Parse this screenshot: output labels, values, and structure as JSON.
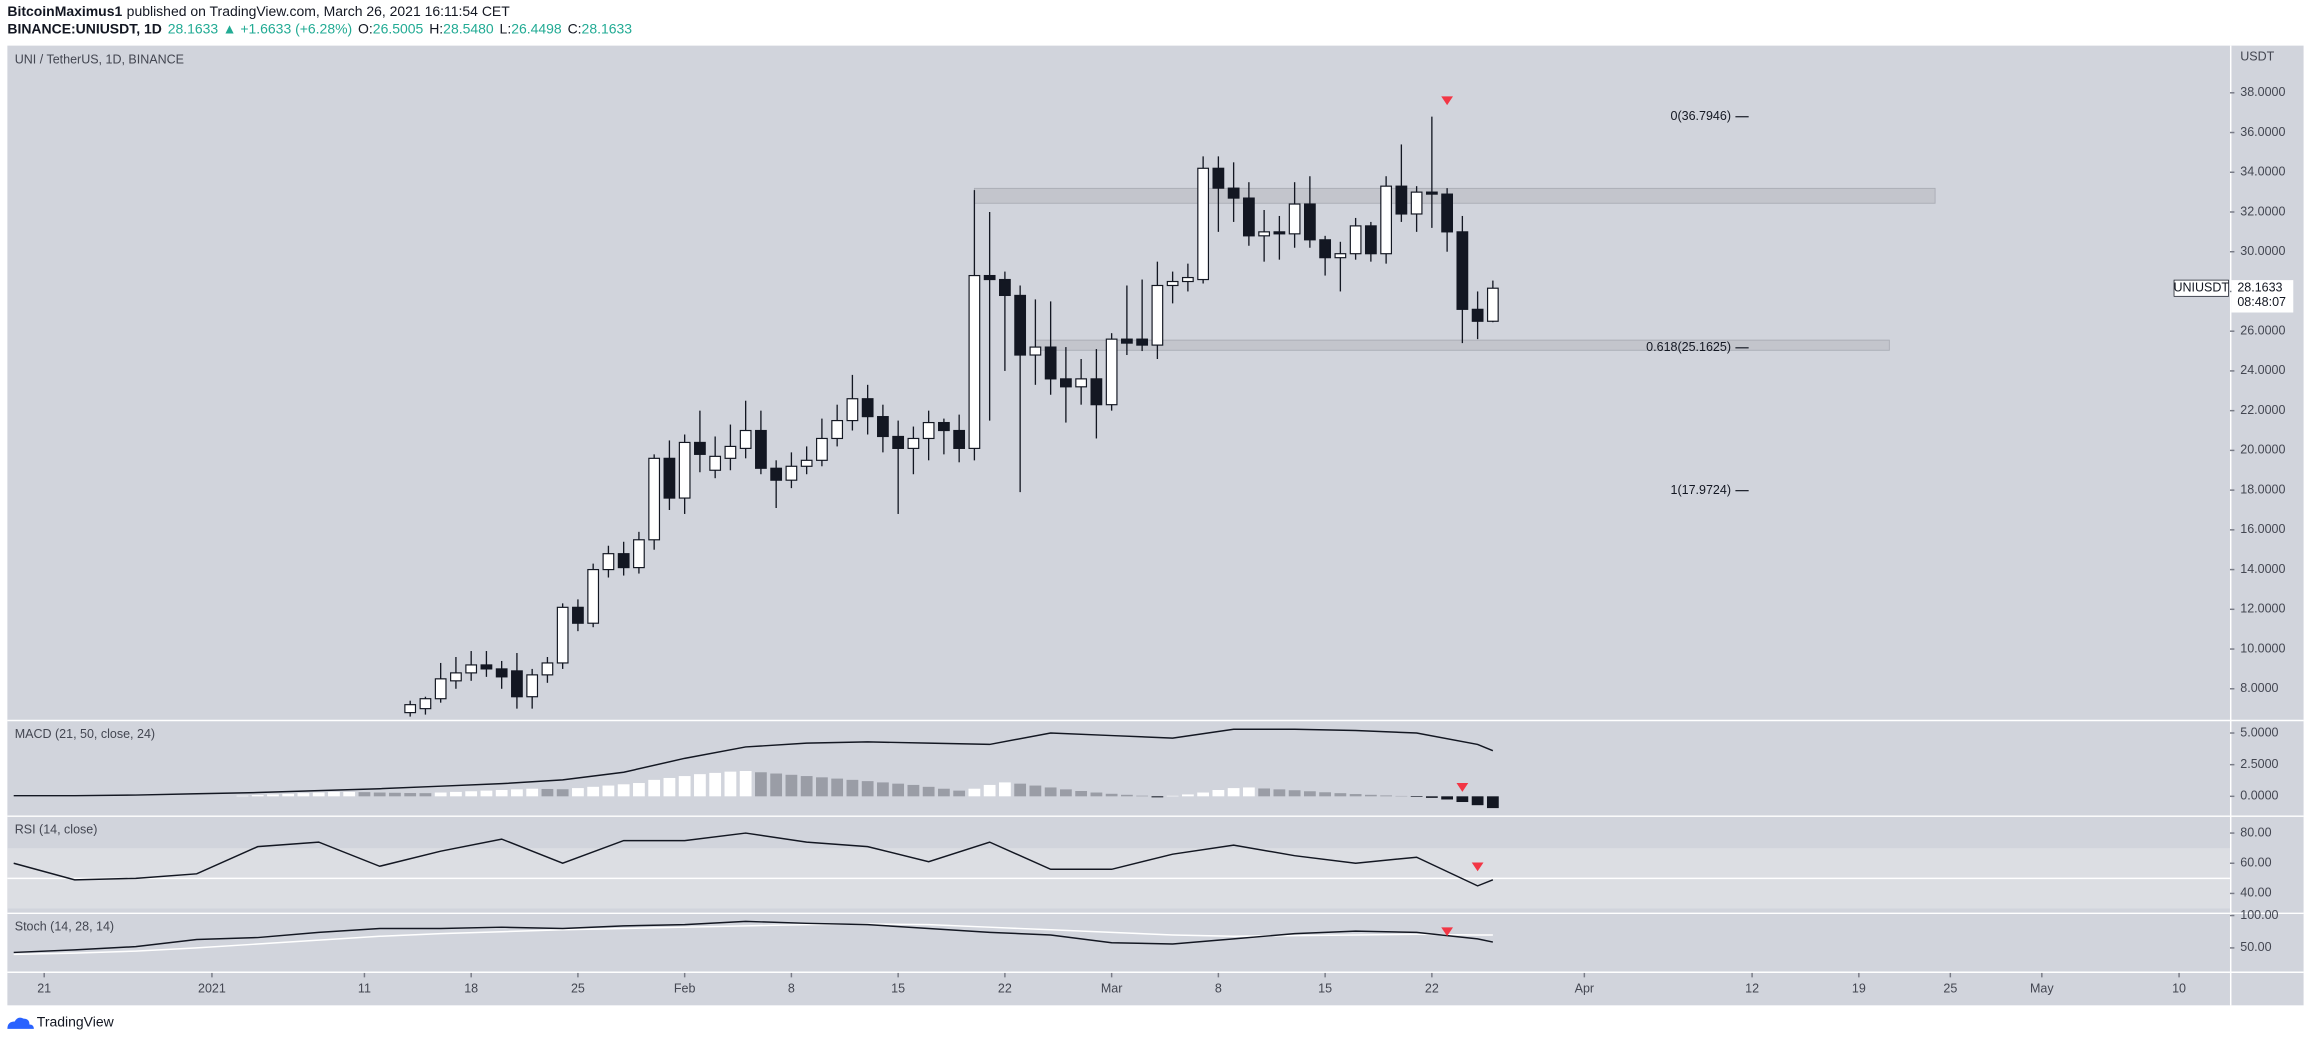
{
  "header": {
    "author": "BitcoinMaximus1",
    "published": "published on TradingView.com, March 26, 2021 16:11:54 CET",
    "symbol": "BINANCE:UNIUSDT, 1D",
    "last": "28.1633",
    "change": "▲ +1.6633 (+6.28%)",
    "ohlc": [
      {
        "label": "O:",
        "value": "26.5005"
      },
      {
        "label": "H:",
        "value": "28.5480"
      },
      {
        "label": "L:",
        "value": "26.4498"
      },
      {
        "label": "C:",
        "value": "28.1633"
      }
    ]
  },
  "chart_data": [
    {
      "type": "candlestick",
      "title": "UNI / TetherUS, 1D, BINANCE",
      "currency": "USDT",
      "up_color": "#ffffff",
      "down_color": "#131722",
      "x": [
        "2021-01-14",
        "2021-01-15",
        "2021-01-16",
        "2021-01-17",
        "2021-01-18",
        "2021-01-19",
        "2021-01-20",
        "2021-01-21",
        "2021-01-22",
        "2021-01-23",
        "2021-01-24",
        "2021-01-25",
        "2021-01-26",
        "2021-01-27",
        "2021-01-28",
        "2021-01-29",
        "2021-01-30",
        "2021-01-31",
        "2021-02-01",
        "2021-02-02",
        "2021-02-03",
        "2021-02-04",
        "2021-02-05",
        "2021-02-06",
        "2021-02-07",
        "2021-02-08",
        "2021-02-09",
        "2021-02-10",
        "2021-02-11",
        "2021-02-12",
        "2021-02-13",
        "2021-02-14",
        "2021-02-15",
        "2021-02-16",
        "2021-02-17",
        "2021-02-18",
        "2021-02-19",
        "2021-02-20",
        "2021-02-21",
        "2021-02-22",
        "2021-02-23",
        "2021-02-24",
        "2021-02-25",
        "2021-02-26",
        "2021-02-27",
        "2021-02-28",
        "2021-03-01",
        "2021-03-02",
        "2021-03-03",
        "2021-03-04",
        "2021-03-05",
        "2021-03-06",
        "2021-03-07",
        "2021-03-08",
        "2021-03-09",
        "2021-03-10",
        "2021-03-11",
        "2021-03-12",
        "2021-03-13",
        "2021-03-14",
        "2021-03-15",
        "2021-03-16",
        "2021-03-17",
        "2021-03-18",
        "2021-03-19",
        "2021-03-20",
        "2021-03-21",
        "2021-03-22",
        "2021-03-23",
        "2021-03-24",
        "2021-03-25",
        "2021-03-26"
      ],
      "open": [
        6.8,
        7.0,
        7.5,
        8.4,
        8.8,
        9.2,
        9.0,
        8.9,
        7.6,
        8.7,
        9.3,
        12.1,
        11.3,
        14.0,
        14.8,
        14.1,
        15.5,
        19.6,
        17.6,
        20.4,
        19.0,
        19.6,
        20.1,
        21.0,
        19.1,
        18.5,
        19.2,
        19.5,
        20.6,
        21.5,
        22.6,
        21.7,
        20.7,
        20.1,
        20.6,
        21.4,
        21.0,
        20.1,
        28.8,
        28.6,
        27.8,
        24.8,
        25.2,
        23.6,
        23.2,
        23.6,
        22.3,
        25.6,
        25.6,
        25.3,
        28.3,
        28.5,
        28.6,
        34.2,
        33.2,
        32.7,
        30.8,
        31.0,
        30.9,
        32.4,
        30.6,
        29.7,
        29.9,
        31.3,
        29.9,
        33.3,
        31.9,
        33.0,
        32.9,
        31.0,
        27.1,
        26.5005
      ],
      "high": [
        7.4,
        7.6,
        9.3,
        9.6,
        9.9,
        9.9,
        9.4,
        9.8,
        9.0,
        9.6,
        12.3,
        12.5,
        14.3,
        15.2,
        15.4,
        15.9,
        19.8,
        20.5,
        20.8,
        22.0,
        20.7,
        21.3,
        22.5,
        22.0,
        19.5,
        19.9,
        20.2,
        21.6,
        22.3,
        23.8,
        23.3,
        22.3,
        21.5,
        21.2,
        22.0,
        21.6,
        21.8,
        33.1,
        32.0,
        29.0,
        28.3,
        27.6,
        27.5,
        25.2,
        24.6,
        25.1,
        25.9,
        28.3,
        28.6,
        29.5,
        29.0,
        29.4,
        34.8,
        34.8,
        34.5,
        33.5,
        32.1,
        31.8,
        33.5,
        33.8,
        30.8,
        30.5,
        31.7,
        31.5,
        33.8,
        35.4,
        33.3,
        36.8,
        33.2,
        31.8,
        28.0,
        28.548
      ],
      "low": [
        6.6,
        6.7,
        7.3,
        8.0,
        8.4,
        8.6,
        8.0,
        7.0,
        7.0,
        8.3,
        9.0,
        10.9,
        11.1,
        13.6,
        13.7,
        13.8,
        15.0,
        17.0,
        16.8,
        18.9,
        18.6,
        19.0,
        19.6,
        18.8,
        17.1,
        18.1,
        18.8,
        19.2,
        20.2,
        21.0,
        20.8,
        19.9,
        16.8,
        18.8,
        19.5,
        19.8,
        19.4,
        19.5,
        21.5,
        24.0,
        17.9,
        23.3,
        22.8,
        21.4,
        22.3,
        20.6,
        22.0,
        24.8,
        25.0,
        24.6,
        27.4,
        28.0,
        28.4,
        31.0,
        31.5,
        30.3,
        29.5,
        29.6,
        30.2,
        30.2,
        28.8,
        28.0,
        29.6,
        29.5,
        29.4,
        31.5,
        31.0,
        31.2,
        30.0,
        25.4,
        25.6,
        26.4498
      ],
      "close": [
        7.2,
        7.5,
        8.5,
        8.8,
        9.2,
        9.0,
        8.6,
        7.6,
        8.7,
        9.3,
        12.1,
        11.3,
        14.0,
        14.8,
        14.1,
        15.5,
        19.6,
        17.6,
        20.4,
        19.8,
        19.7,
        20.2,
        21.0,
        19.1,
        18.5,
        19.2,
        19.5,
        20.6,
        21.5,
        22.6,
        21.7,
        20.7,
        20.1,
        20.6,
        21.4,
        21.0,
        20.1,
        28.8,
        28.6,
        27.8,
        24.8,
        25.2,
        23.6,
        23.2,
        23.6,
        22.3,
        25.6,
        25.4,
        25.3,
        28.3,
        28.5,
        28.7,
        34.2,
        33.2,
        32.7,
        30.8,
        31.0,
        30.9,
        32.4,
        30.6,
        29.7,
        29.9,
        31.3,
        29.9,
        33.3,
        31.9,
        33.0,
        32.9,
        31.0,
        27.1,
        26.5,
        28.1633
      ],
      "xlim": [
        "2020-12-19",
        "2021-05-13"
      ],
      "ylim": [
        6.44,
        40.3
      ],
      "yticks": [
        {
          "value": 8,
          "label": "8.0000"
        },
        {
          "value": 10,
          "label": "10.0000"
        },
        {
          "value": 12,
          "label": "12.0000"
        },
        {
          "value": 14,
          "label": "14.0000"
        },
        {
          "value": 16,
          "label": "16.0000"
        },
        {
          "value": 18,
          "label": "18.0000"
        },
        {
          "value": 20,
          "label": "20.0000"
        },
        {
          "value": 22,
          "label": "22.0000"
        },
        {
          "value": 24,
          "label": "24.0000"
        },
        {
          "value": 26,
          "label": "26.0000"
        },
        {
          "value": 28,
          "label": "28.0000"
        },
        {
          "value": 30,
          "label": "30.0000"
        },
        {
          "value": 32,
          "label": "32.0000"
        },
        {
          "value": 34,
          "label": "34.0000"
        },
        {
          "value": 36,
          "label": "36.0000"
        },
        {
          "value": 38,
          "label": "38.0000"
        }
      ],
      "zones": [
        {
          "x": [
            "2021-02-20",
            "2021-04-24"
          ],
          "y": [
            32.44,
            33.19
          ],
          "color": "#bfc1c8"
        },
        {
          "x": [
            "2021-02-24",
            "2021-04-21"
          ],
          "y": [
            25.04,
            25.55
          ],
          "color": "#bfc1c8"
        }
      ],
      "levels": [
        {
          "value": 36.7946,
          "label": "0(36.7946)"
        },
        {
          "value": 25.1625,
          "label": "0.618(25.1625)"
        },
        {
          "value": 17.9724,
          "label": "1(17.9724)"
        }
      ],
      "markers": [
        {
          "x": "2021-03-23",
          "y": 37.6,
          "color": "#f23645"
        }
      ],
      "last_price": {
        "symbol": "UNIUSDT",
        "value": 28.1633,
        "countdown": "08:48:07"
      }
    },
    {
      "type": "combo",
      "title": "MACD (21, 50, close, 24)",
      "x": [
        "2020-12-19",
        "2020-12-23",
        "2020-12-27",
        "2020-12-31",
        "2021-01-04",
        "2021-01-08",
        "2021-01-12",
        "2021-01-16",
        "2021-01-20",
        "2021-01-24",
        "2021-01-28",
        "2021-02-01",
        "2021-02-05",
        "2021-02-09",
        "2021-02-13",
        "2021-02-17",
        "2021-02-21",
        "2021-02-25",
        "2021-03-01",
        "2021-03-05",
        "2021-03-09",
        "2021-03-13",
        "2021-03-17",
        "2021-03-21",
        "2021-03-25",
        "2021-03-26"
      ],
      "series": [
        {
          "type": "bar",
          "color": "#ffffff",
          "falling_color": "#9a9da6",
          "negative_color": "#131722",
          "x": [
            "2021-01-03",
            "2021-01-04",
            "2021-01-05",
            "2021-01-06",
            "2021-01-07",
            "2021-01-08",
            "2021-01-09",
            "2021-01-10",
            "2021-01-11",
            "2021-01-12",
            "2021-01-13",
            "2021-01-14",
            "2021-01-15",
            "2021-01-16",
            "2021-01-17",
            "2021-01-18",
            "2021-01-19",
            "2021-01-20",
            "2021-01-21",
            "2021-01-22",
            "2021-01-23",
            "2021-01-24",
            "2021-01-25",
            "2021-01-26",
            "2021-01-27",
            "2021-01-28",
            "2021-01-29",
            "2021-01-30",
            "2021-01-31",
            "2021-02-01",
            "2021-02-02",
            "2021-02-03",
            "2021-02-04",
            "2021-02-05",
            "2021-02-06",
            "2021-02-07",
            "2021-02-08",
            "2021-02-09",
            "2021-02-10",
            "2021-02-11",
            "2021-02-12",
            "2021-02-13",
            "2021-02-14",
            "2021-02-15",
            "2021-02-16",
            "2021-02-17",
            "2021-02-18",
            "2021-02-19",
            "2021-02-20",
            "2021-02-21",
            "2021-02-22",
            "2021-02-23",
            "2021-02-24",
            "2021-02-25",
            "2021-02-26",
            "2021-02-27",
            "2021-02-28",
            "2021-03-01",
            "2021-03-02",
            "2021-03-03",
            "2021-03-04",
            "2021-03-05",
            "2021-03-06",
            "2021-03-07",
            "2021-03-08",
            "2021-03-09",
            "2021-03-10",
            "2021-03-11",
            "2021-03-12",
            "2021-03-13",
            "2021-03-14",
            "2021-03-15",
            "2021-03-16",
            "2021-03-17",
            "2021-03-18",
            "2021-03-19",
            "2021-03-20",
            "2021-03-21",
            "2021-03-22",
            "2021-03-23",
            "2021-03-24",
            "2021-03-25",
            "2021-03-26"
          ],
          "values": [
            0.05,
            0.1,
            0.15,
            0.2,
            0.25,
            0.3,
            0.35,
            0.35,
            0.33,
            0.3,
            0.28,
            0.26,
            0.25,
            0.3,
            0.35,
            0.4,
            0.45,
            0.5,
            0.55,
            0.6,
            0.58,
            0.56,
            0.65,
            0.75,
            0.85,
            0.95,
            1.05,
            1.3,
            1.45,
            1.6,
            1.75,
            1.85,
            1.95,
            2.0,
            1.9,
            1.8,
            1.7,
            1.6,
            1.5,
            1.4,
            1.3,
            1.2,
            1.1,
            1.0,
            0.9,
            0.75,
            0.6,
            0.45,
            0.6,
            0.9,
            1.1,
            1.0,
            0.85,
            0.7,
            0.55,
            0.42,
            0.3,
            0.2,
            0.12,
            0.05,
            -0.08,
            0.04,
            0.15,
            0.3,
            0.5,
            0.65,
            0.7,
            0.62,
            0.55,
            0.48,
            0.4,
            0.32,
            0.25,
            0.18,
            0.12,
            0.07,
            0.03,
            -0.05,
            -0.12,
            -0.25,
            -0.45,
            -0.7,
            -0.93
          ]
        },
        {
          "type": "line",
          "color": "#131722",
          "values": [
            0.05,
            0.05,
            0.1,
            0.2,
            0.3,
            0.45,
            0.6,
            0.8,
            1.0,
            1.3,
            1.9,
            3.0,
            3.9,
            4.2,
            4.3,
            4.2,
            4.1,
            5.0,
            4.8,
            4.6,
            5.3,
            5.3,
            5.2,
            5.0,
            4.1,
            3.6
          ]
        }
      ],
      "xlim": [
        "2020-12-19",
        "2021-05-13"
      ],
      "ylim": [
        -1.51,
        5.93
      ],
      "yticks": [
        {
          "value": 0,
          "label": "0.0000"
        },
        {
          "value": 2.5,
          "label": "2.5000"
        },
        {
          "value": 5,
          "label": "5.0000"
        }
      ],
      "markers": [
        {
          "x": "2021-03-24",
          "y": 0.7,
          "color": "#f23645"
        }
      ]
    },
    {
      "type": "line",
      "title": "RSI (14, close)",
      "x": [
        "2020-12-19",
        "2020-12-23",
        "2020-12-27",
        "2020-12-31",
        "2021-01-04",
        "2021-01-08",
        "2021-01-12",
        "2021-01-16",
        "2021-01-20",
        "2021-01-24",
        "2021-01-28",
        "2021-02-01",
        "2021-02-05",
        "2021-02-09",
        "2021-02-13",
        "2021-02-17",
        "2021-02-21",
        "2021-02-25",
        "2021-03-01",
        "2021-03-05",
        "2021-03-09",
        "2021-03-13",
        "2021-03-17",
        "2021-03-21",
        "2021-03-25",
        "2021-03-26"
      ],
      "series": [
        {
          "color": "#131722",
          "values": [
            60,
            49,
            50,
            53,
            71,
            74,
            58,
            68,
            76,
            60,
            75,
            75,
            80,
            74,
            71,
            61,
            74,
            56,
            56,
            66,
            72,
            65,
            60,
            64,
            45,
            49
          ]
        }
      ],
      "band": [
        30,
        70
      ],
      "band_color": "#dcdee3",
      "midline": 50,
      "xlim": [
        "2020-12-19",
        "2021-05-13"
      ],
      "ylim": [
        27.3,
        90.7
      ],
      "yticks": [
        {
          "value": 40,
          "label": "40.00"
        },
        {
          "value": 60,
          "label": "60.00"
        },
        {
          "value": 80,
          "label": "80.00"
        }
      ],
      "markers": [
        {
          "x": "2021-03-25",
          "y": 57.6,
          "color": "#f23645"
        }
      ]
    },
    {
      "type": "line",
      "title": "Stoch (14, 28, 14)",
      "x": [
        "2020-12-19",
        "2020-12-23",
        "2020-12-27",
        "2020-12-31",
        "2021-01-04",
        "2021-01-08",
        "2021-01-12",
        "2021-01-16",
        "2021-01-20",
        "2021-01-24",
        "2021-01-28",
        "2021-02-01",
        "2021-02-05",
        "2021-02-09",
        "2021-02-13",
        "2021-02-17",
        "2021-02-21",
        "2021-02-25",
        "2021-03-01",
        "2021-03-05",
        "2021-03-09",
        "2021-03-13",
        "2021-03-17",
        "2021-03-21",
        "2021-03-25",
        "2021-03-26"
      ],
      "series": [
        {
          "color": "#ffffff",
          "values": [
            40,
            42,
            45,
            50,
            56,
            62,
            68,
            72,
            75,
            78,
            80,
            82,
            84,
            86,
            87,
            86,
            82,
            78,
            74,
            70,
            68,
            69,
            70,
            71,
            70,
            70
          ]
        },
        {
          "color": "#131722",
          "values": [
            43,
            47,
            52,
            63,
            66,
            74,
            80,
            80,
            82,
            80,
            84,
            86,
            91,
            88,
            86,
            80,
            74,
            70,
            58,
            56,
            64,
            72,
            76,
            74,
            64,
            59
          ]
        }
      ],
      "xlim": [
        "2020-12-19",
        "2021-05-13"
      ],
      "ylim": [
        13.6,
        102.3
      ],
      "yticks": [
        {
          "value": 50,
          "label": "50.00"
        },
        {
          "value": 100,
          "label": "100.00"
        }
      ],
      "markers": [
        {
          "x": "2021-03-23",
          "y": 75,
          "color": "#f23645"
        }
      ],
      "xticks": [
        {
          "value": "2020-12-21",
          "label": "21"
        },
        {
          "value": "2021-01-01",
          "label": "2021"
        },
        {
          "value": "2021-01-11",
          "label": "11"
        },
        {
          "value": "2021-01-18",
          "label": "18"
        },
        {
          "value": "2021-01-25",
          "label": "25"
        },
        {
          "value": "2021-02-01",
          "label": "Feb"
        },
        {
          "value": "2021-02-08",
          "label": "8"
        },
        {
          "value": "2021-02-15",
          "label": "15"
        },
        {
          "value": "2021-02-22",
          "label": "22"
        },
        {
          "value": "2021-03-01",
          "label": "Mar"
        },
        {
          "value": "2021-03-08",
          "label": "8"
        },
        {
          "value": "2021-03-15",
          "label": "15"
        },
        {
          "value": "2021-03-22",
          "label": "22"
        },
        {
          "value": "2021-04-01",
          "label": "Apr"
        },
        {
          "value": "2021-04-12",
          "label": "12"
        },
        {
          "value": "2021-04-19",
          "label": "19"
        },
        {
          "value": "2021-04-25",
          "label": "25"
        },
        {
          "value": "2021-05-01",
          "label": "May"
        },
        {
          "value": "2021-05-10",
          "label": "10"
        }
      ]
    }
  ],
  "footer": {
    "brand": "TradingView"
  }
}
